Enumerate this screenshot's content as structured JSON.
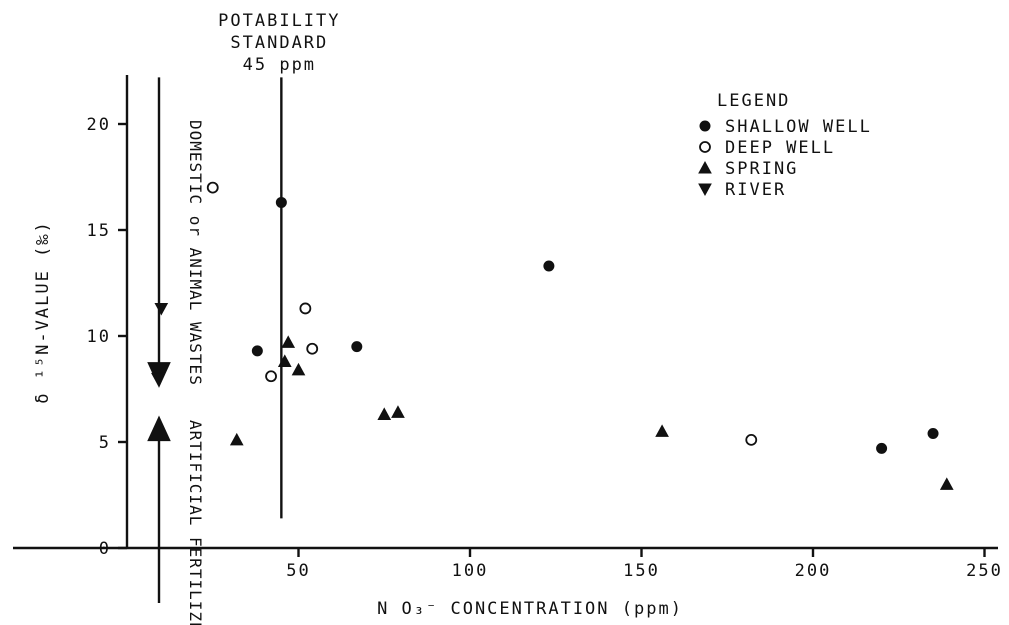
{
  "chart_data": {
    "type": "scatter",
    "xlabel": "N O₃⁻ CONCENTRATION (ppm)",
    "ylabel": "δ ¹⁵N-VALUE (‰)",
    "xlim": [
      0,
      250
    ],
    "ylim": [
      0,
      21.5
    ],
    "x_ticks": [
      "50",
      "100",
      "150",
      "200",
      "250"
    ],
    "y_ticks": [
      "0",
      "5",
      "10",
      "15",
      "20"
    ],
    "grid": false,
    "legend_position": "top-right",
    "legend_title": "LEGEND",
    "series": [
      {
        "name": "SHALLOW WELL",
        "marker": "filled-circle",
        "points": [
          [
            45,
            16.3
          ],
          [
            38,
            9.3
          ],
          [
            67,
            9.5
          ],
          [
            123,
            13.3
          ],
          [
            220,
            4.7
          ],
          [
            235,
            5.4
          ]
        ]
      },
      {
        "name": "DEEP WELL",
        "marker": "open-circle",
        "points": [
          [
            25,
            17.0
          ],
          [
            52,
            11.3
          ],
          [
            54,
            9.4
          ],
          [
            42,
            8.1
          ],
          [
            182,
            5.1
          ]
        ]
      },
      {
        "name": "SPRING",
        "marker": "triangle-up",
        "points": [
          [
            47,
            9.7
          ],
          [
            46,
            8.8
          ],
          [
            50,
            8.4
          ],
          [
            32,
            5.1
          ],
          [
            75,
            6.3
          ],
          [
            79,
            6.4
          ],
          [
            156,
            5.5
          ],
          [
            239,
            3.0
          ]
        ]
      },
      {
        "name": "RIVER",
        "marker": "triangle-down",
        "points": [
          [
            10,
            11.3
          ],
          [
            9,
            8.0
          ]
        ]
      }
    ],
    "annotations": {
      "standard": {
        "x": 45,
        "y_range": [
          1.4,
          22.2
        ],
        "lines": [
          "POTABILITY",
          "STANDARD",
          "45 ppm"
        ]
      },
      "animal_wastes": {
        "text": "DOMESTIC or ANIMAL WASTES",
        "y_range": [
          7.8,
          22.2
        ]
      },
      "fertilizer": {
        "text": "ARTIFICIAL FERTILIZER",
        "y_range": [
          0,
          6.1
        ]
      }
    }
  }
}
